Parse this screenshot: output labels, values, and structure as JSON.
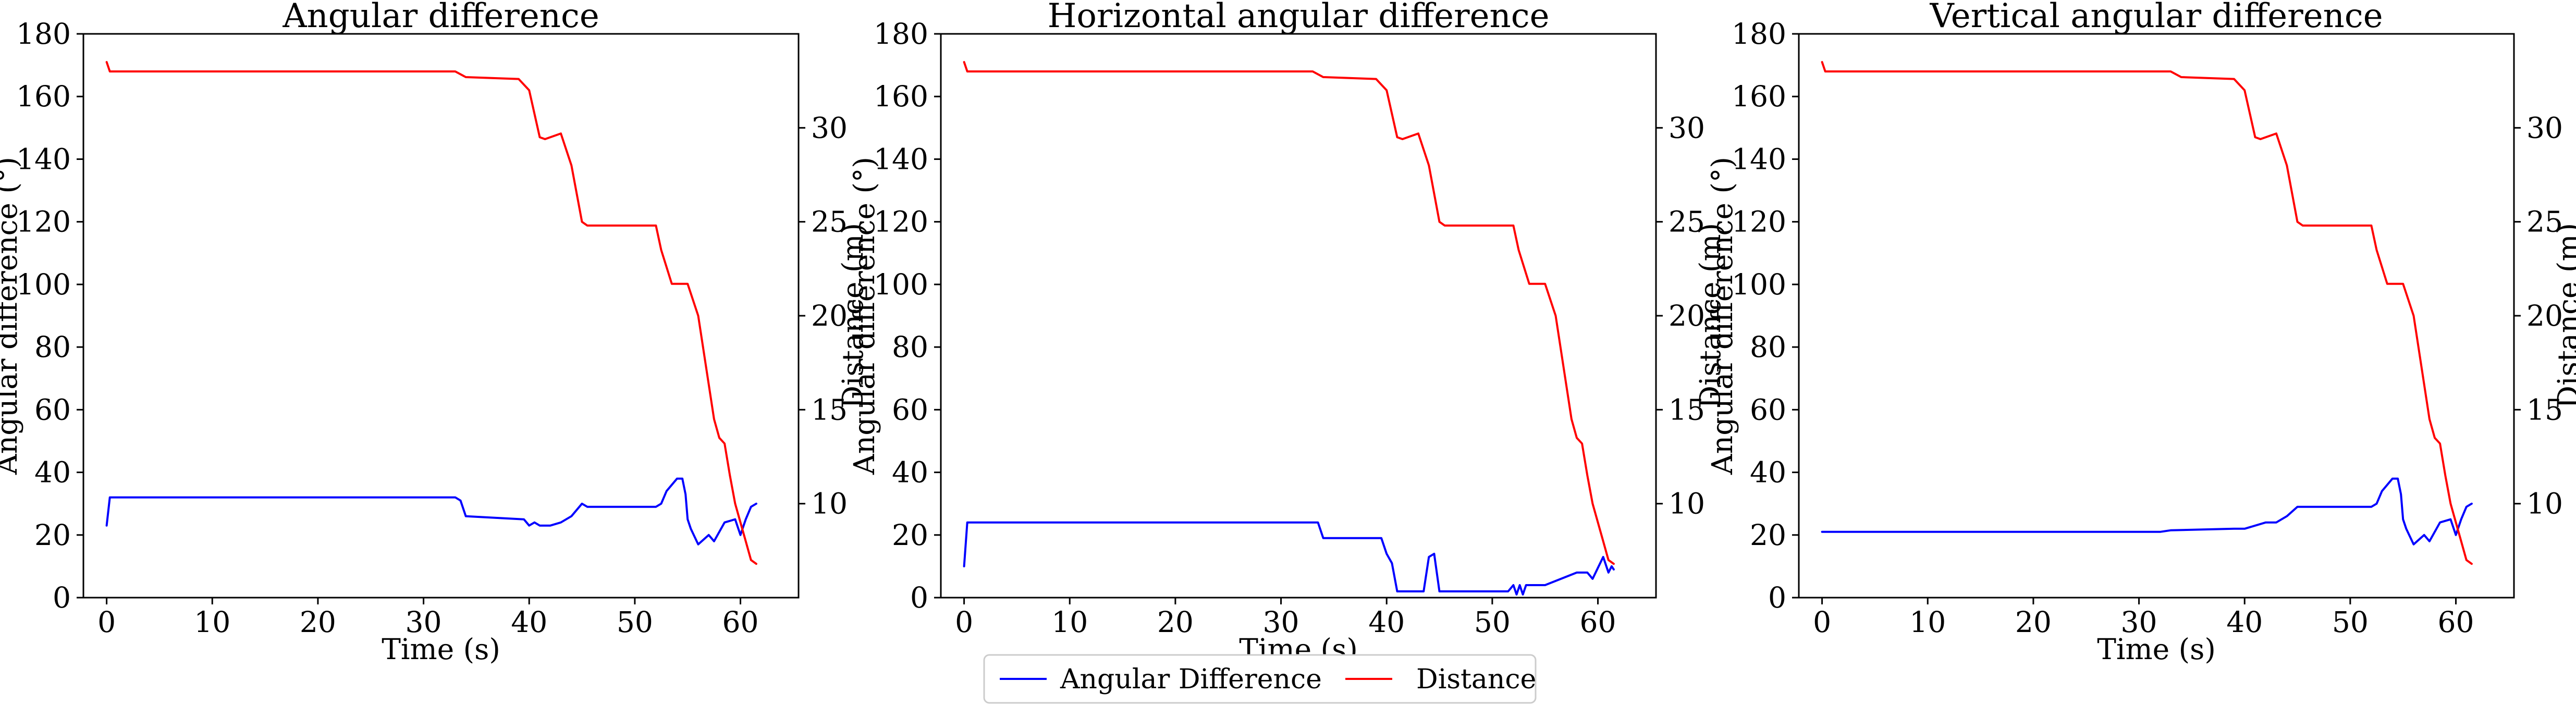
{
  "legend": {
    "entries": [
      {
        "label": "Angular Difference",
        "color": "#0000ff"
      },
      {
        "label": "Distance",
        "color": "#ff0000"
      }
    ],
    "placement": "bottom-center"
  },
  "chart_data": [
    {
      "type": "line",
      "title": "Angular difference",
      "xlabel": "Time (s)",
      "ylabel": "Angular difference (°)",
      "y2label": "Distance (m)",
      "xlim": [
        -2.2,
        65.5
      ],
      "ylim": [
        0,
        180
      ],
      "y2lim": [
        5,
        35
      ],
      "xticks": [
        0,
        10,
        20,
        30,
        40,
        50,
        60
      ],
      "yticks": [
        0,
        20,
        40,
        60,
        80,
        100,
        120,
        140,
        160,
        180
      ],
      "y2ticks": [
        10,
        15,
        20,
        25,
        30
      ],
      "grid": false,
      "series": [
        {
          "name": "Angular Difference",
          "axis": "left",
          "color": "#0000ff",
          "x": [
            0,
            0.3,
            33.0,
            33.5,
            34.0,
            39.5,
            40.0,
            40.5,
            41.0,
            42.0,
            43.0,
            44.0,
            45.0,
            45.5,
            46.0,
            52.0,
            52.5,
            53.0,
            54.0,
            54.5,
            54.8,
            55.0,
            55.3,
            56.0,
            57.0,
            57.5,
            58.5,
            59.5,
            60.0,
            60.5,
            61.0,
            61.5
          ],
          "y": [
            23,
            32,
            32,
            31,
            26,
            25,
            23,
            24,
            23,
            23,
            24,
            26,
            30,
            29,
            29,
            29,
            30,
            34,
            38,
            38,
            33,
            25,
            22,
            17,
            20,
            18,
            24,
            25,
            20,
            25,
            29,
            30
          ]
        },
        {
          "name": "Distance",
          "axis": "right",
          "color": "#ff0000",
          "x": [
            0,
            0.3,
            33.0,
            34.0,
            39.0,
            40.0,
            41.0,
            41.5,
            43.0,
            44.0,
            45.0,
            45.5,
            52.0,
            52.5,
            53.5,
            55.0,
            56.0,
            57.5,
            58.0,
            58.5,
            59.0,
            59.5,
            60.5,
            61.0,
            61.5
          ],
          "y": [
            33.5,
            33,
            33,
            32.7,
            32.6,
            32,
            29.5,
            29.4,
            29.7,
            28,
            25,
            24.8,
            24.8,
            23.5,
            21.7,
            21.7,
            20,
            14.5,
            13.5,
            13.2,
            11.5,
            10,
            8,
            7,
            6.8
          ]
        }
      ]
    },
    {
      "type": "line",
      "title": "Horizontal angular difference",
      "xlabel": "Time (s)",
      "ylabel": "Angular difference (°)",
      "y2label": "Distance (m)",
      "xlim": [
        -2.2,
        65.5
      ],
      "ylim": [
        0,
        180
      ],
      "y2lim": [
        5,
        35
      ],
      "xticks": [
        0,
        10,
        20,
        30,
        40,
        50,
        60
      ],
      "yticks": [
        0,
        20,
        40,
        60,
        80,
        100,
        120,
        140,
        160,
        180
      ],
      "y2ticks": [
        10,
        15,
        20,
        25,
        30
      ],
      "grid": false,
      "series": [
        {
          "name": "Angular Difference",
          "axis": "left",
          "color": "#0000ff",
          "x": [
            0,
            0.3,
            33.0,
            33.5,
            34.0,
            39.5,
            40.0,
            40.5,
            41.0,
            41.5,
            43.5,
            44.0,
            44.5,
            45.0,
            45.5,
            51.5,
            52.0,
            52.3,
            52.6,
            52.9,
            53.2,
            55.0,
            58.0,
            59.0,
            59.5,
            60.5,
            61.0,
            61.3,
            61.5
          ],
          "y": [
            10,
            24,
            24,
            24,
            19,
            19,
            14,
            11,
            2,
            2,
            2,
            13,
            14,
            2,
            2,
            2,
            4,
            1,
            4,
            1,
            4,
            4,
            8,
            8,
            6,
            13,
            8,
            10,
            9
          ]
        },
        {
          "name": "Distance",
          "axis": "right",
          "color": "#ff0000",
          "x": [
            0,
            0.3,
            33.0,
            34.0,
            39.0,
            40.0,
            41.0,
            41.5,
            43.0,
            44.0,
            45.0,
            45.5,
            52.0,
            52.5,
            53.5,
            55.0,
            56.0,
            57.5,
            58.0,
            58.5,
            59.0,
            59.5,
            60.5,
            61.0,
            61.5
          ],
          "y": [
            33.5,
            33,
            33,
            32.7,
            32.6,
            32,
            29.5,
            29.4,
            29.7,
            28,
            25,
            24.8,
            24.8,
            23.5,
            21.7,
            21.7,
            20,
            14.5,
            13.5,
            13.2,
            11.5,
            10,
            8,
            7,
            6.8
          ]
        }
      ]
    },
    {
      "type": "line",
      "title": "Vertical angular difference",
      "xlabel": "Time (s)",
      "ylabel": "Angular difference (°)",
      "y2label": "Distance (m)",
      "xlim": [
        -2.2,
        65.5
      ],
      "ylim": [
        0,
        180
      ],
      "y2lim": [
        5,
        35
      ],
      "xticks": [
        0,
        10,
        20,
        30,
        40,
        50,
        60
      ],
      "yticks": [
        0,
        20,
        40,
        60,
        80,
        100,
        120,
        140,
        160,
        180
      ],
      "y2ticks": [
        10,
        15,
        20,
        25,
        30
      ],
      "grid": false,
      "series": [
        {
          "name": "Angular Difference",
          "axis": "left",
          "color": "#0000ff",
          "x": [
            0,
            32.0,
            33.0,
            39.0,
            40.0,
            42.0,
            43.0,
            44.0,
            45.0,
            52.0,
            52.5,
            53.0,
            54.0,
            54.5,
            54.8,
            55.0,
            55.3,
            56.0,
            57.0,
            57.5,
            58.5,
            59.5,
            60.0,
            60.5,
            61.0,
            61.5
          ],
          "y": [
            21,
            21,
            21.5,
            22,
            22,
            24,
            24,
            26,
            29,
            29,
            30,
            34,
            38,
            38,
            33,
            25,
            22,
            17,
            20,
            18,
            24,
            25,
            20,
            25,
            29,
            30
          ]
        },
        {
          "name": "Distance",
          "axis": "right",
          "color": "#ff0000",
          "x": [
            0,
            0.3,
            33.0,
            34.0,
            39.0,
            40.0,
            41.0,
            41.5,
            43.0,
            44.0,
            45.0,
            45.5,
            52.0,
            52.5,
            53.5,
            55.0,
            56.0,
            57.5,
            58.0,
            58.5,
            59.0,
            59.5,
            60.5,
            61.0,
            61.5
          ],
          "y": [
            33.5,
            33,
            33,
            32.7,
            32.6,
            32,
            29.5,
            29.4,
            29.7,
            28,
            25,
            24.8,
            24.8,
            23.5,
            21.7,
            21.7,
            20,
            14.5,
            13.5,
            13.2,
            11.5,
            10,
            8,
            7,
            6.8
          ]
        }
      ]
    }
  ]
}
